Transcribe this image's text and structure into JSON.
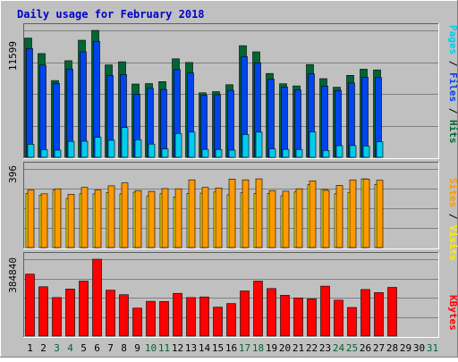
{
  "title": "Daily usage for February 2018",
  "colors": {
    "background": "#c0c0c0",
    "title": "#0000cc",
    "hits": "#006633",
    "files": "#0044ee",
    "pages": "#00ccee",
    "visits": "#ff9900",
    "sites": "#ffee00",
    "kbytes": "#ff0000",
    "weekend_label": "#006633",
    "weekday_label": "#000000"
  },
  "legend": {
    "pages": "Pages",
    "files": "Files",
    "hits": "Hits",
    "sites": "Sites",
    "visits": "Visits",
    "kbytes": "KBytes",
    "slash": " / "
  },
  "chart_data": {
    "type": "bar",
    "title": "Daily usage for February 2018",
    "categories": [
      "1",
      "2",
      "3",
      "4",
      "5",
      "6",
      "7",
      "8",
      "9",
      "10",
      "11",
      "12",
      "13",
      "14",
      "15",
      "16",
      "17",
      "18",
      "19",
      "20",
      "21",
      "22",
      "23",
      "24",
      "25",
      "26",
      "27",
      "28",
      "29",
      "30",
      "31"
    ],
    "weekend_days": [
      "3",
      "4",
      "10",
      "11",
      "17",
      "18",
      "24",
      "25",
      "31"
    ],
    "panels": [
      {
        "name": "hits-files-pages",
        "ymax_label": "11599",
        "ymax": 11599,
        "series": [
          {
            "name": "Hits",
            "values": [
              10900,
              9480,
              7020,
              8830,
              10700,
              11599,
              8450,
              8730,
              6700,
              6740,
              6920,
              9000,
              8670,
              5900,
              6000,
              6630,
              10200,
              9640,
              7660,
              6720,
              6530,
              8480,
              7190,
              6400,
              7490,
              8050,
              7990,
              null,
              null,
              null,
              null
            ]
          },
          {
            "name": "Files",
            "values": [
              9940,
              8430,
              6760,
              8060,
              9640,
              10600,
              7480,
              7560,
              5760,
              6300,
              6200,
              8010,
              7700,
              5670,
              5730,
              6120,
              9200,
              8640,
              7140,
              6420,
              6150,
              7620,
              6500,
              6110,
              6800,
              7320,
              7290,
              null,
              null,
              null,
              null
            ]
          },
          {
            "name": "Pages",
            "values": [
              1200,
              700,
              650,
              1450,
              1470,
              1830,
              1560,
              2720,
              1600,
              1210,
              770,
              2170,
              2300,
              730,
              720,
              650,
              2080,
              2300,
              780,
              730,
              720,
              2320,
              630,
              1060,
              1070,
              1040,
              1420,
              null,
              null,
              null,
              null
            ]
          }
        ]
      },
      {
        "name": "visits-sites",
        "ymax_label": "396",
        "ymax": 396,
        "series": [
          {
            "name": "Visits",
            "values": [
              290,
              271,
              296,
              268,
              303,
              290,
              311,
              326,
              287,
              283,
              297,
              296,
              341,
              303,
              300,
              345,
              341,
              346,
              287,
              284,
              296,
              336,
              288,
              313,
              341,
              345,
              339,
              null,
              null,
              null,
              null
            ]
          },
          {
            "name": "Sites",
            "values": [
              273,
              264,
              289,
              247,
              271,
              270,
              277,
              270,
              279,
              260,
              271,
              255,
              273,
              274,
              280,
              266,
              276,
              272,
              272,
              261,
              280,
              317,
              293,
              271,
              278,
              346,
              318,
              null,
              null,
              null,
              null
            ]
          }
        ]
      },
      {
        "name": "kbytes",
        "ymax_label": "384840",
        "ymax": 384840,
        "series": [
          {
            "name": "KBytes",
            "values": [
              310000,
              247000,
              193000,
              236000,
              275000,
              384840,
              230000,
              207000,
              140000,
              174000,
              173000,
              214000,
              193000,
              196000,
              145000,
              163000,
              226000,
              275000,
              238000,
              204000,
              191000,
              186000,
              250000,
              180000,
              143000,
              233000,
              218000,
              244000,
              null,
              null,
              null
            ]
          }
        ]
      }
    ]
  }
}
